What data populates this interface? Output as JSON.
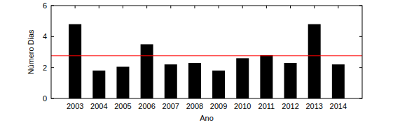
{
  "chart_data": {
    "type": "bar",
    "x_label": "Ano",
    "y_label": "Número Dias",
    "categories": [
      "2003",
      "2004",
      "2005",
      "2006",
      "2007",
      "2008",
      "2009",
      "2010",
      "2011",
      "2012",
      "2013",
      "2014"
    ],
    "values": [
      4.8,
      1.8,
      2.05,
      3.5,
      2.2,
      2.3,
      1.8,
      2.6,
      2.8,
      2.3,
      4.8,
      2.2
    ],
    "color": "#000000",
    "mean_line": 2.76,
    "ylim": [
      0,
      6
    ],
    "yticks": [
      0,
      2,
      4,
      6
    ],
    "grid": false
  }
}
